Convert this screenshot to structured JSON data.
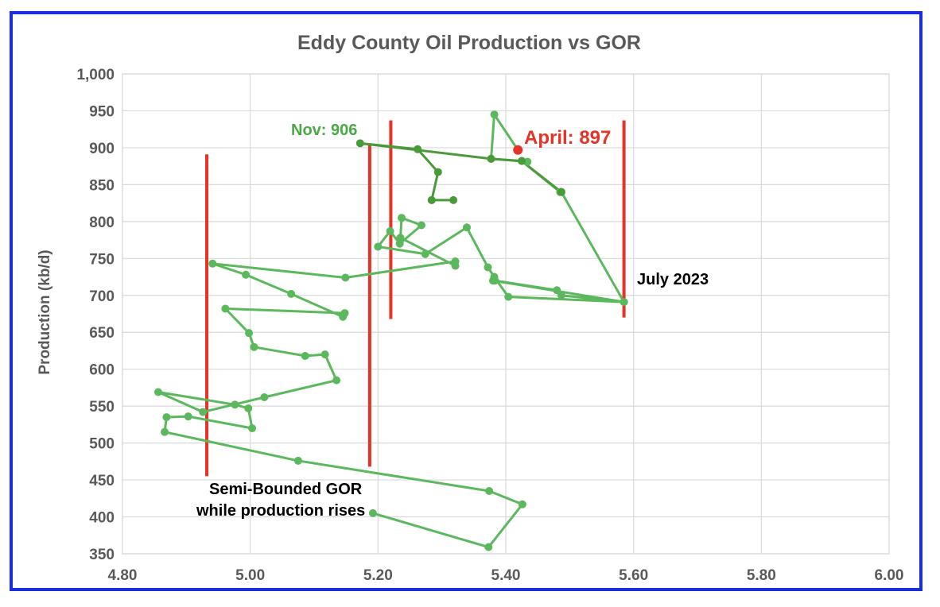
{
  "chart_data": {
    "type": "scatter",
    "title": "Eddy County Oil Production vs GOR",
    "xlabel": "",
    "ylabel": "Production (kb/d)",
    "xlim": [
      4.8,
      6.0
    ],
    "ylim": [
      350,
      1000
    ],
    "x_ticks": [
      "4.80",
      "5.00",
      "5.20",
      "5.40",
      "5.60",
      "5.80",
      "6.00"
    ],
    "y_ticks": [
      "350",
      "400",
      "450",
      "500",
      "550",
      "600",
      "650",
      "700",
      "750",
      "800",
      "850",
      "900",
      "950",
      "1,000"
    ],
    "grid": true,
    "legend": "none",
    "colors": {
      "series": "#5cb85c",
      "highlight": "#e63327",
      "lines": "#e63327",
      "axis_text": "#595959"
    },
    "series": [
      {
        "points": [
          [
            5.192,
            405
          ],
          [
            5.373,
            359
          ],
          [
            5.426,
            417
          ],
          [
            5.374,
            435
          ],
          [
            5.075,
            476
          ],
          [
            4.866,
            515
          ],
          [
            4.869,
            535
          ],
          [
            4.903,
            536
          ],
          [
            5.003,
            520
          ],
          [
            4.997,
            547
          ],
          [
            4.976,
            552
          ],
          [
            4.856,
            569
          ],
          [
            4.926,
            542
          ],
          [
            5.022,
            562
          ],
          [
            5.135,
            585
          ],
          [
            5.117,
            620
          ],
          [
            5.086,
            618
          ],
          [
            5.006,
            630
          ],
          [
            4.998,
            649
          ],
          [
            4.961,
            682
          ],
          [
            5.148,
            676
          ],
          [
            5.145,
            671
          ],
          [
            5.064,
            702
          ],
          [
            4.993,
            728
          ],
          [
            4.941,
            743
          ],
          [
            5.149,
            724
          ],
          [
            5.321,
            746
          ],
          [
            5.321,
            740
          ],
          [
            5.235,
            778
          ],
          [
            5.237,
            805
          ],
          [
            5.268,
            795
          ],
          [
            5.234,
            770
          ],
          [
            5.219,
            787
          ],
          [
            5.2,
            766
          ],
          [
            5.274,
            756
          ],
          [
            5.339,
            792
          ],
          [
            5.372,
            738
          ],
          [
            5.382,
            725
          ],
          [
            5.404,
            698
          ],
          [
            5.585,
            691
          ],
          [
            5.487,
            700
          ],
          [
            5.48,
            707
          ],
          [
            5.383,
            720
          ],
          [
            5.38,
            720
          ],
          [
            5.585,
            691
          ],
          [
            5.487,
            840
          ],
          [
            5.485,
            840
          ],
          [
            5.425,
            882
          ],
          [
            5.434,
            881
          ],
          [
            5.377,
            885
          ],
          [
            5.382,
            945
          ],
          [
            5.419,
            897
          ]
        ]
      },
      {
        "points": [
          [
            5.284,
            829
          ],
          [
            5.318,
            829
          ],
          [
            5.284,
            829
          ],
          [
            5.294,
            867
          ],
          [
            5.262,
            898
          ],
          [
            5.172,
            906
          ],
          [
            5.377,
            885
          ],
          [
            5.425,
            882
          ],
          [
            5.487,
            840
          ]
        ]
      }
    ],
    "highlight_point": [
      5.419,
      897
    ],
    "vertical_lines": [
      {
        "x": 4.932,
        "y_bottom": 455,
        "y_top": 891
      },
      {
        "x": 5.187,
        "y_bottom": 468,
        "y_top": 906
      },
      {
        "x": 5.22,
        "y_bottom": 668,
        "y_top": 937
      },
      {
        "x": 5.585,
        "y_bottom": 670,
        "y_top": 937
      }
    ],
    "annotations": [
      {
        "key": "nov",
        "text": "Nov: 906"
      },
      {
        "key": "april",
        "text": "April: 897"
      },
      {
        "key": "july",
        "text": "July 2023"
      },
      {
        "key": "semi1",
        "text": "Semi-Bounded GOR"
      },
      {
        "key": "semi2",
        "text": "while production rises"
      }
    ]
  }
}
